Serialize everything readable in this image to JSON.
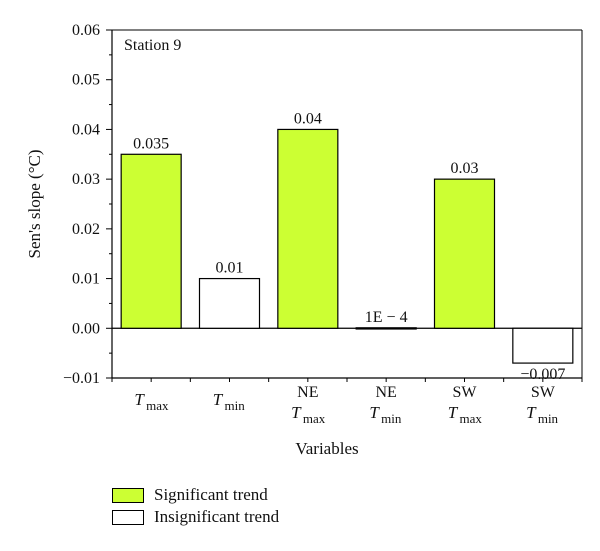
{
  "chart_data": {
    "type": "bar",
    "annotation": "Station 9",
    "xlabel": "Variables",
    "ylabel": "Sen's slope (°C)",
    "ylim": [
      -0.01,
      0.06
    ],
    "yticks": [
      -0.01,
      0.0,
      0.01,
      0.02,
      0.03,
      0.04,
      0.05,
      0.06
    ],
    "ytick_labels": [
      "−0.01",
      "0.00",
      "0.01",
      "0.02",
      "0.03",
      "0.04",
      "0.05",
      "0.06"
    ],
    "grid": false,
    "legend_position": "bottom-left",
    "categories": [
      {
        "prefix": "",
        "base": "T",
        "sub": "max"
      },
      {
        "prefix": "",
        "base": "T",
        "sub": "min"
      },
      {
        "prefix": "NE",
        "base": "T",
        "sub": "max"
      },
      {
        "prefix": "NE",
        "base": "T",
        "sub": "min"
      },
      {
        "prefix": "SW",
        "base": "T",
        "sub": "max"
      },
      {
        "prefix": "SW",
        "base": "T",
        "sub": "min"
      }
    ],
    "values": [
      0.035,
      0.01,
      0.04,
      0.0001,
      0.03,
      -0.007
    ],
    "value_labels": [
      "0.035",
      "0.01",
      "0.04",
      "1E − 4",
      "0.03",
      "−0.007"
    ],
    "significant": [
      true,
      false,
      true,
      false,
      true,
      false
    ],
    "legend": [
      {
        "label": "Significant trend",
        "color": "#ccff33"
      },
      {
        "label": "Insignificant trend",
        "color": "#ffffff"
      }
    ]
  }
}
